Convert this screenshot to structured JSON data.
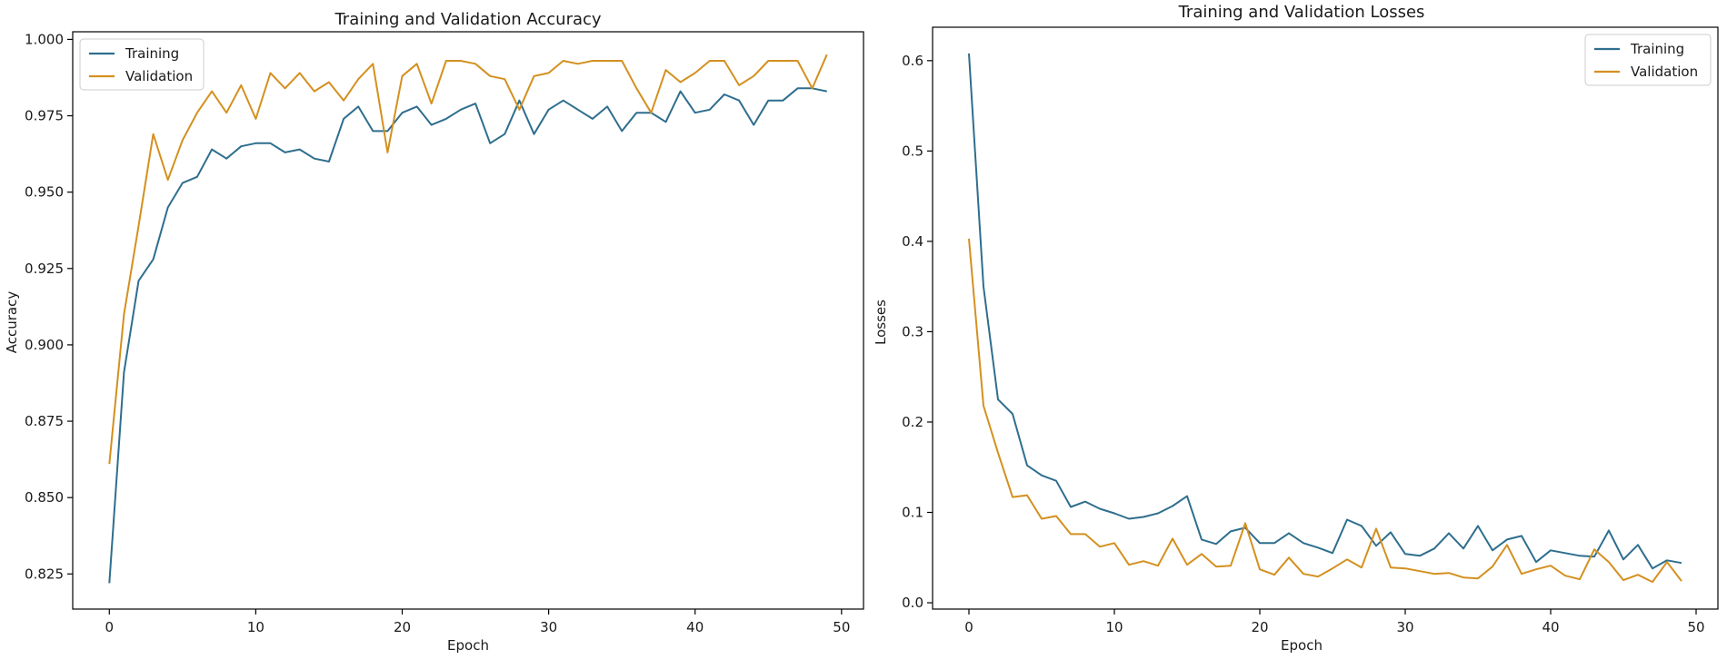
{
  "colors": {
    "training": "#2e6e8e",
    "validation": "#d4901f"
  },
  "chart_data": [
    {
      "type": "line",
      "title": "Training and Validation Accuracy",
      "xlabel": "Epoch",
      "ylabel": "Accuracy",
      "xlim": [
        -2.5,
        51.5
      ],
      "ylim": [
        0.8135,
        1.0025
      ],
      "xticks": [
        0,
        10,
        20,
        30,
        40,
        50
      ],
      "yticks": [
        0.825,
        0.85,
        0.875,
        0.9,
        0.925,
        0.95,
        0.975,
        1.0
      ],
      "ytick_labels": [
        "0.825",
        "0.850",
        "0.875",
        "0.900",
        "0.925",
        "0.950",
        "0.975",
        "1.000"
      ],
      "grid": false,
      "legend_position": "top-left",
      "x": [
        0,
        1,
        2,
        3,
        4,
        5,
        6,
        7,
        8,
        9,
        10,
        11,
        12,
        13,
        14,
        15,
        16,
        17,
        18,
        19,
        20,
        21,
        22,
        23,
        24,
        25,
        26,
        27,
        28,
        29,
        30,
        31,
        32,
        33,
        34,
        35,
        36,
        37,
        38,
        39,
        40,
        41,
        42,
        43,
        44,
        45,
        46,
        47,
        48,
        49
      ],
      "series": [
        {
          "name": "Training",
          "values": [
            0.822,
            0.891,
            0.921,
            0.928,
            0.945,
            0.953,
            0.955,
            0.964,
            0.961,
            0.965,
            0.966,
            0.966,
            0.963,
            0.964,
            0.961,
            0.96,
            0.974,
            0.978,
            0.97,
            0.97,
            0.976,
            0.978,
            0.972,
            0.974,
            0.977,
            0.979,
            0.966,
            0.969,
            0.98,
            0.969,
            0.977,
            0.98,
            0.977,
            0.974,
            0.978,
            0.97,
            0.976,
            0.976,
            0.973,
            0.983,
            0.976,
            0.977,
            0.982,
            0.98,
            0.972,
            0.98,
            0.98,
            0.984,
            0.984,
            0.983
          ]
        },
        {
          "name": "Validation",
          "values": [
            0.861,
            0.91,
            0.939,
            0.969,
            0.954,
            0.967,
            0.976,
            0.983,
            0.976,
            0.985,
            0.974,
            0.989,
            0.984,
            0.989,
            0.983,
            0.986,
            0.98,
            0.987,
            0.992,
            0.963,
            0.988,
            0.992,
            0.979,
            0.993,
            0.993,
            0.992,
            0.988,
            0.987,
            0.977,
            0.988,
            0.989,
            0.993,
            0.992,
            0.993,
            0.993,
            0.993,
            0.984,
            0.976,
            0.99,
            0.986,
            0.989,
            0.993,
            0.993,
            0.985,
            0.988,
            0.993,
            0.993,
            0.993,
            0.984,
            0.995
          ]
        }
      ]
    },
    {
      "type": "line",
      "title": "Training and Validation Losses",
      "xlabel": "Epoch",
      "ylabel": "Losses",
      "xlim": [
        -2.5,
        51.5
      ],
      "ylim": [
        -0.007,
        0.637
      ],
      "xticks": [
        0,
        10,
        20,
        30,
        40,
        50
      ],
      "yticks": [
        0,
        0.1,
        0.2,
        0.3,
        0.4,
        0.5,
        0.6
      ],
      "ytick_labels": [
        "0.0",
        "0.1",
        "0.2",
        "0.3",
        "0.4",
        "0.5",
        "0.6"
      ],
      "grid": false,
      "legend_position": "top-right",
      "x": [
        0,
        1,
        2,
        3,
        4,
        5,
        6,
        7,
        8,
        9,
        10,
        11,
        12,
        13,
        14,
        15,
        16,
        17,
        18,
        19,
        20,
        21,
        22,
        23,
        24,
        25,
        26,
        27,
        28,
        29,
        30,
        31,
        32,
        33,
        34,
        35,
        36,
        37,
        38,
        39,
        40,
        41,
        42,
        43,
        44,
        45,
        46,
        47,
        48,
        49
      ],
      "series": [
        {
          "name": "Training",
          "values": [
            0.608,
            0.35,
            0.225,
            0.209,
            0.152,
            0.141,
            0.135,
            0.106,
            0.112,
            0.104,
            0.099,
            0.093,
            0.095,
            0.099,
            0.107,
            0.118,
            0.07,
            0.065,
            0.079,
            0.083,
            0.066,
            0.066,
            0.077,
            0.066,
            0.061,
            0.055,
            0.092,
            0.085,
            0.063,
            0.078,
            0.054,
            0.052,
            0.06,
            0.077,
            0.06,
            0.085,
            0.058,
            0.07,
            0.074,
            0.045,
            0.058,
            0.055,
            0.052,
            0.051,
            0.08,
            0.048,
            0.064,
            0.038,
            0.047,
            0.044
          ]
        },
        {
          "name": "Validation",
          "values": [
            0.403,
            0.218,
            0.166,
            0.117,
            0.119,
            0.093,
            0.096,
            0.076,
            0.076,
            0.062,
            0.066,
            0.042,
            0.046,
            0.041,
            0.071,
            0.042,
            0.054,
            0.04,
            0.041,
            0.088,
            0.037,
            0.031,
            0.05,
            0.032,
            0.029,
            0.038,
            0.048,
            0.039,
            0.082,
            0.039,
            0.038,
            0.035,
            0.032,
            0.033,
            0.028,
            0.027,
            0.04,
            0.064,
            0.032,
            0.037,
            0.041,
            0.03,
            0.026,
            0.059,
            0.045,
            0.025,
            0.031,
            0.023,
            0.045,
            0.024
          ]
        }
      ]
    }
  ]
}
